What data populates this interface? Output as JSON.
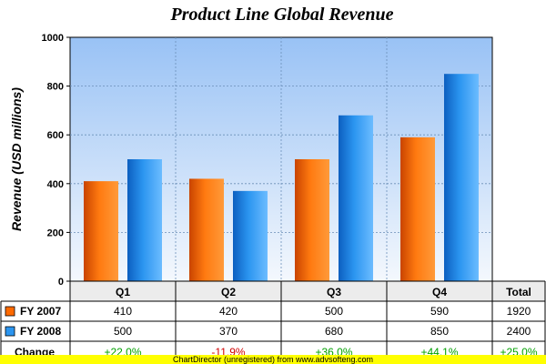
{
  "chart_data": {
    "type": "bar",
    "title": "Product Line Global Revenue",
    "ylabel": "Revenue (USD millions)",
    "xlabel": "",
    "categories": [
      "Q1",
      "Q2",
      "Q3",
      "Q4"
    ],
    "series": [
      {
        "name": "FY 2007",
        "values": [
          410,
          420,
          500,
          590
        ],
        "total": "1920",
        "color": "#ff6a00"
      },
      {
        "name": "FY 2008",
        "values": [
          500,
          370,
          680,
          850
        ],
        "total": "2400",
        "color": "#2b95f0"
      }
    ],
    "ylim": [
      0,
      1000
    ],
    "yticks": [
      0,
      200,
      400,
      600,
      800,
      1000
    ],
    "grid": true,
    "table": {
      "total_header": "Total",
      "change_label": "Change",
      "change": [
        "+22.0%",
        "-11.9%",
        "+36.0%",
        "+44.1%",
        "+25.0%"
      ]
    },
    "colors": {
      "plot_top": "#99c2f5",
      "plot_bottom": "#f4f8fd",
      "change_positive": "#00a000",
      "change_negative": "#d00000",
      "footer_bg": "#ffff00"
    }
  },
  "footer": "ChartDirector (unregistered) from www.advsofteng.com"
}
